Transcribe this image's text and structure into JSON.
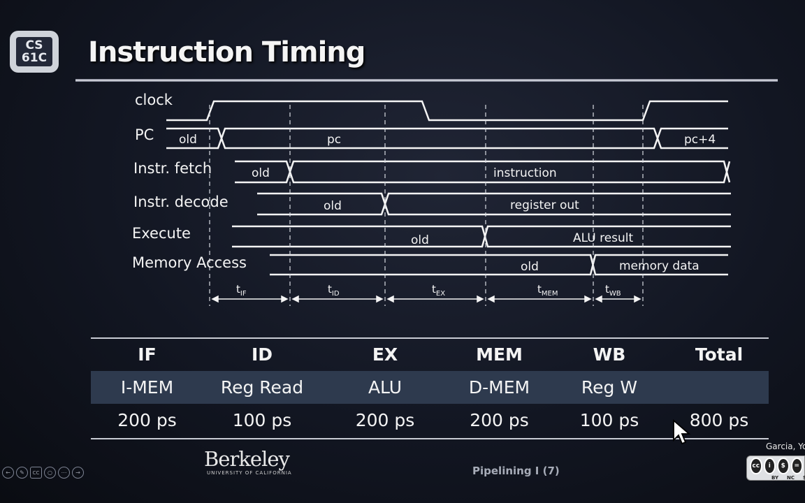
{
  "logo": {
    "line1": "CS",
    "line2": "61C"
  },
  "title": "Instruction Timing",
  "timing": {
    "signals": {
      "clock": "clock",
      "pc": "PC",
      "fetch": "Instr. fetch",
      "decode": "Instr. decode",
      "execute": "Execute",
      "memory": "Memory Access"
    },
    "values": {
      "pc_old": "old",
      "pc_new": "pc",
      "pc_next": "pc+4",
      "fetch_old": "old",
      "fetch_new": "instruction",
      "decode_old": "old",
      "decode_new": "register out",
      "execute_old": "old",
      "execute_new": "ALU result",
      "memory_old": "old",
      "memory_new": "memory data"
    },
    "intervals": [
      {
        "t": "t",
        "sub": "IF"
      },
      {
        "t": "t",
        "sub": "ID"
      },
      {
        "t": "t",
        "sub": "EX"
      },
      {
        "t": "t",
        "sub": "MEM"
      },
      {
        "t": "t",
        "sub": "WB"
      }
    ]
  },
  "table": {
    "headers": [
      "IF",
      "ID",
      "EX",
      "MEM",
      "WB",
      "Total"
    ],
    "stages": [
      "I-MEM",
      "Reg Read",
      "ALU",
      "D-MEM",
      "Reg W",
      ""
    ],
    "times": [
      "200 ps",
      "100 ps",
      "200 ps",
      "200 ps",
      "100 ps",
      "800 ps"
    ]
  },
  "footer": {
    "university": "Berkeley",
    "university_sub": "UNIVERSITY OF CALIFORNIA",
    "label": "Pipelining I (7)",
    "author": "Garcia, Yo",
    "cc": {
      "badges": [
        "cc",
        "i",
        "$",
        "="
      ],
      "labels": [
        "BY",
        "NC",
        "SA"
      ]
    }
  },
  "toolbar": {
    "icons": [
      "back-icon",
      "pen-icon",
      "captions-icon",
      "zoom-icon",
      "more-icon",
      "forward-icon"
    ],
    "captions_label": "CC"
  },
  "colors": {
    "table_band": "#2e3a4e",
    "text": "#f4f4f4"
  }
}
